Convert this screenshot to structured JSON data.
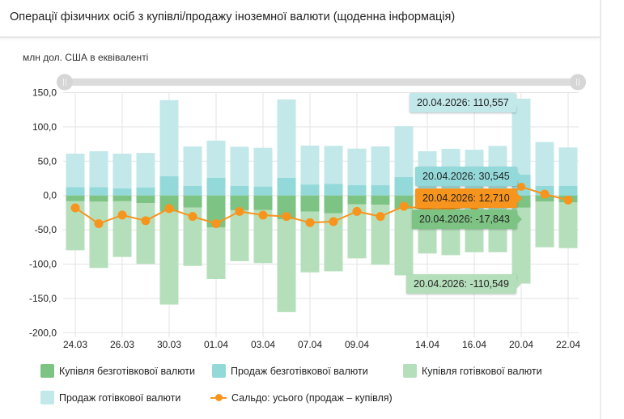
{
  "header": {
    "title": "Операції фізичних осіб з купівлі/продажу іноземної валюти (щоденна інформація)"
  },
  "colors": {
    "noncash_buy": "#7dc383",
    "noncash_sale": "#93d9d9",
    "cash_buy": "#b5dfbb",
    "cash_sale": "#c2e8ea",
    "saldo": "#f7941d"
  },
  "chart_data": {
    "type": "bar",
    "stacked": true,
    "ylabel": "млн дол. США в еквіваленті",
    "ylim": [
      -200,
      150
    ],
    "yticks": [
      "150,0",
      "100,0",
      "50,0",
      "0,0",
      "-50,0",
      "-100,0",
      "-150,0",
      "-200,0"
    ],
    "ytick_values": [
      150,
      100,
      50,
      0,
      -50,
      -100,
      -150,
      -200
    ],
    "grid": true,
    "legend_position": "bottom",
    "categories": [
      "24.03",
      "25.03",
      "26.03",
      "27.03",
      "30.03",
      "31.03",
      "01.04",
      "02.04",
      "03.04",
      "06.04",
      "07.04",
      "08.04",
      "09.04",
      "10.04",
      "13.04",
      "14.04",
      "15.04",
      "16.04",
      "17.04",
      "20.04",
      "21.04",
      "22.04"
    ],
    "xtick_labels": [
      "24.03",
      "26.03",
      "30.03",
      "01.04",
      "03.04",
      "07.04",
      "09.04",
      "14.04",
      "16.04",
      "20.04",
      "22.04"
    ],
    "series": [
      {
        "name": "Купівля безготівкової валюти",
        "key": "noncash_buy",
        "values": [
          -8.4,
          -9,
          -8.4,
          -11,
          -23.6,
          -17.7,
          -46.7,
          -21.5,
          -21,
          -34.5,
          -23.6,
          -26,
          -13,
          -13.3,
          -19.7,
          -12,
          -12,
          -12,
          -12,
          -17.843,
          -8.6,
          -9.8
        ]
      },
      {
        "name": "Продаж безготівкової валюти",
        "key": "noncash_sale",
        "values": [
          12,
          12,
          10.3,
          11.8,
          28,
          14,
          25.6,
          14,
          13,
          25.6,
          16,
          17,
          15,
          15,
          26.8,
          13,
          13,
          13,
          13,
          30.545,
          14,
          14
        ]
      },
      {
        "name": "Купівля готівкової валюти",
        "key": "cash_buy",
        "values": [
          -71.4,
          -96.6,
          -81.2,
          -88.8,
          -135.4,
          -84.9,
          -75.1,
          -74.2,
          -77.5,
          -135.5,
          -88.4,
          -84.5,
          -78.6,
          -87.7,
          -96.7,
          -72.5,
          -75,
          -70.7,
          -70.7,
          -110.549,
          -66.9,
          -66.9
        ]
      },
      {
        "name": "Продаж готівкової валюти",
        "key": "cash_sale",
        "values": [
          49,
          52.5,
          50.7,
          50.2,
          111,
          57.5,
          54.4,
          57,
          56.6,
          114.4,
          56.8,
          55.4,
          53.4,
          56.6,
          74.2,
          51.5,
          55,
          53.7,
          59.3,
          110.557,
          64,
          56
        ]
      },
      {
        "name": "Сальдо: усього (продаж – купівля)",
        "key": "saldo",
        "type": "line",
        "values": [
          -18,
          -41,
          -28.5,
          -36.7,
          -19,
          -30.6,
          -41,
          -23.2,
          -28.7,
          -30.6,
          -39.6,
          -38,
          -23.2,
          -30.6,
          -15.7,
          -20,
          -19,
          -16,
          -10.4,
          12.71,
          2,
          -6.7
        ]
      }
    ],
    "tooltips": [
      {
        "key": "cash_sale",
        "text": "20.04.2026: 110,557"
      },
      {
        "key": "noncash_sale",
        "text": "20.04.2026: 30,545"
      },
      {
        "key": "saldo",
        "text": "20.04.2026: 12,710"
      },
      {
        "key": "noncash_buy",
        "text": "20.04.2026: -17,843"
      },
      {
        "key": "cash_buy",
        "text": "20.04.2026: -110,549"
      }
    ]
  }
}
